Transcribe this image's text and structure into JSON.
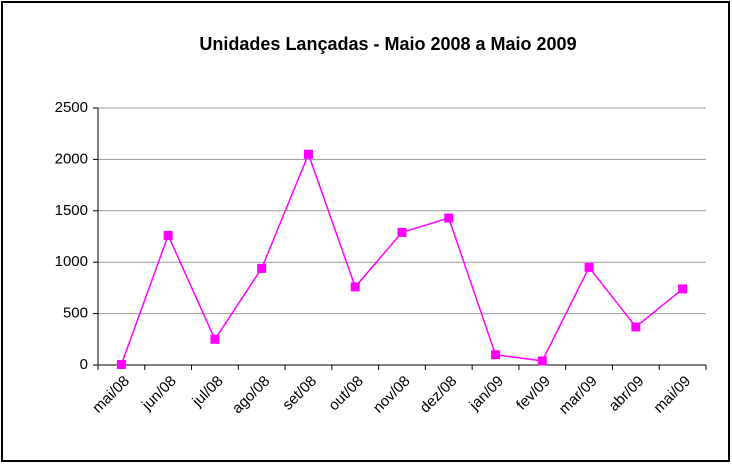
{
  "chart_data": {
    "type": "line",
    "title": "Unidades Lançadas - Maio 2008 a Maio 2009",
    "categories": [
      "mai/08",
      "jun/08",
      "jul/08",
      "ago/08",
      "set/08",
      "out/08",
      "nov/08",
      "dez/08",
      "jan/09",
      "fev/09",
      "mar/09",
      "abr/09",
      "mai/09"
    ],
    "series": [
      {
        "color": "#ff00ff",
        "values": [
          5,
          1260,
          250,
          940,
          2050,
          760,
          1290,
          1430,
          100,
          40,
          950,
          370,
          740
        ]
      }
    ],
    "ylim": [
      0,
      2500
    ],
    "yticks": [
      0,
      500,
      1000,
      1500,
      2000,
      2500
    ],
    "grid": true
  }
}
